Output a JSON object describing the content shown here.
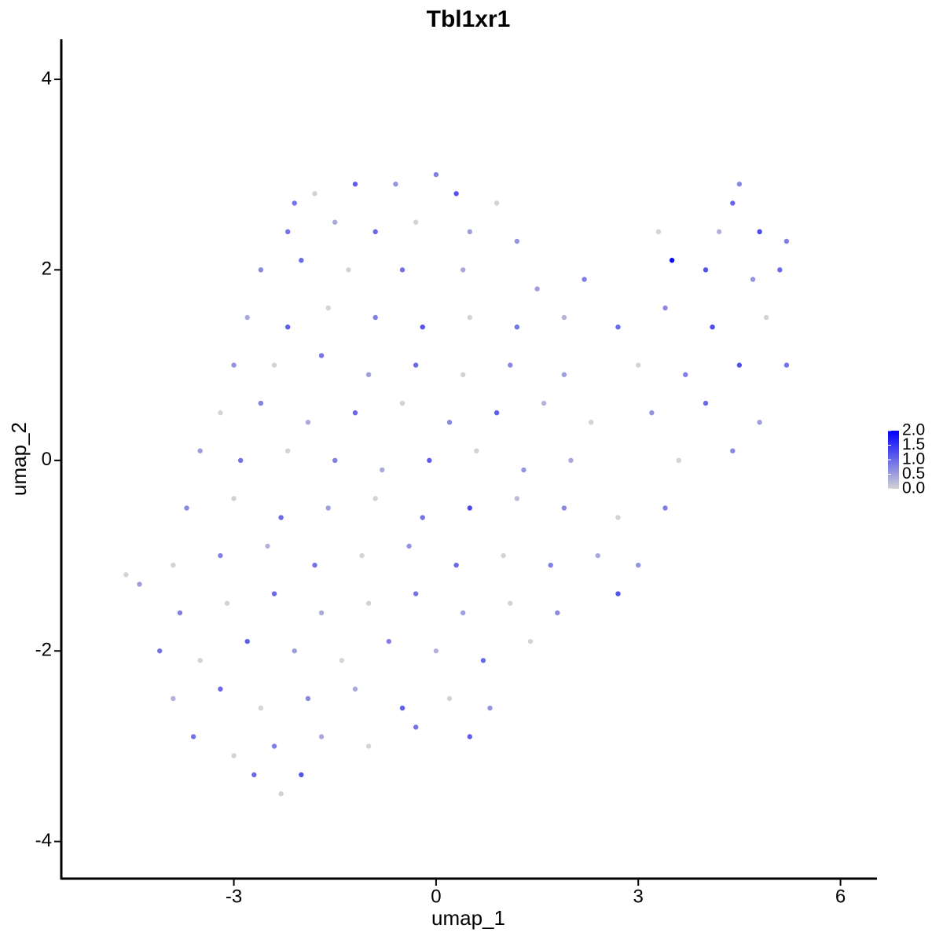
{
  "chart_data": {
    "type": "scatter",
    "title": "Tbl1xr1",
    "x_label": "umap_1",
    "y_label": "umap_2",
    "xlim": [
      -5.56,
      6.53
    ],
    "ylim": [
      -4.39,
      4.42
    ],
    "xticks": [
      -3,
      0,
      3,
      6
    ],
    "yticks": [
      -4,
      -2,
      0,
      2,
      4
    ],
    "colorbar": {
      "lim": [
        0,
        2
      ],
      "low": "#d3d3d3",
      "high": "#0000ff",
      "ticks": [
        {
          "value": 0,
          "label": "0.0"
        },
        {
          "value": 0.5,
          "label": "0.5"
        },
        {
          "value": 1,
          "label": "1.0"
        },
        {
          "value": 1.5,
          "label": "1.5"
        },
        {
          "value": 2,
          "label": "2.0"
        }
      ]
    },
    "x": [
      -1.8,
      -1.2,
      -0.6,
      0,
      0.3,
      0.9,
      -2.1,
      4.5,
      4.4,
      -2.2,
      -1.5,
      -0.9,
      -0.3,
      0.5,
      1.2,
      3.3,
      4.2,
      4.8,
      5.2,
      -2.6,
      -2.0,
      -1.3,
      -0.5,
      0.4,
      1.5,
      2.2,
      3.5,
      4.0,
      4.7,
      5.1,
      -2.8,
      -2.2,
      -1.6,
      -0.9,
      -0.2,
      0.5,
      1.2,
      1.9,
      2.7,
      3.4,
      4.1,
      4.9,
      -3.0,
      -2.4,
      -1.7,
      -1.0,
      -0.3,
      0.4,
      1.1,
      1.9,
      3.0,
      3.7,
      4.5,
      5.2,
      -3.2,
      -2.6,
      -1.9,
      -1.2,
      -0.5,
      0.2,
      0.9,
      1.6,
      2.3,
      3.2,
      4.0,
      4.8,
      -3.5,
      -2.9,
      -2.2,
      -1.5,
      -0.8,
      -0.1,
      0.6,
      1.3,
      2.0,
      3.6,
      4.4,
      -3.7,
      -3.0,
      -2.3,
      -1.6,
      -0.9,
      -0.2,
      0.5,
      1.2,
      1.9,
      2.7,
      3.4,
      -3.9,
      -3.2,
      -2.5,
      -1.8,
      -1.1,
      -0.4,
      0.3,
      1.0,
      1.7,
      2.4,
      3.0,
      -4.4,
      -3.8,
      -3.1,
      -2.4,
      -1.7,
      -1.0,
      -0.3,
      0.4,
      1.1,
      1.8,
      2.7,
      -4.1,
      -3.5,
      -2.8,
      -2.1,
      -1.4,
      -0.7,
      0,
      0.7,
      1.4,
      -3.9,
      -3.2,
      -2.6,
      -1.9,
      -1.2,
      -0.5,
      0.2,
      0.8,
      -3.6,
      -3.0,
      -2.4,
      -1.7,
      -1.0,
      -0.3,
      0.5,
      -2.7,
      -2.3,
      -2.0,
      -4.6
    ],
    "y": [
      2.8,
      2.9,
      2.9,
      3.0,
      2.8,
      2.7,
      2.7,
      2.9,
      2.7,
      2.4,
      2.5,
      2.4,
      2.5,
      2.4,
      2.3,
      2.4,
      2.4,
      2.4,
      2.3,
      2.0,
      2.1,
      2.0,
      2.0,
      2.0,
      1.8,
      1.9,
      2.1,
      2.0,
      1.9,
      2.0,
      1.5,
      1.4,
      1.6,
      1.5,
      1.4,
      1.5,
      1.4,
      1.5,
      1.4,
      1.6,
      1.4,
      1.5,
      1.0,
      1.0,
      1.1,
      0.9,
      1.0,
      0.9,
      1.0,
      0.9,
      1.0,
      0.9,
      1.0,
      1.0,
      0.5,
      0.6,
      0.4,
      0.5,
      0.6,
      0.4,
      0.5,
      0.6,
      0.4,
      0.5,
      0.6,
      0.4,
      0.1,
      0.0,
      0.1,
      0.0,
      -0.1,
      0.0,
      0.1,
      -0.1,
      0.0,
      0.0,
      0.1,
      -0.5,
      -0.4,
      -0.6,
      -0.5,
      -0.4,
      -0.6,
      -0.5,
      -0.4,
      -0.5,
      -0.6,
      -0.5,
      -1.1,
      -1.0,
      -0.9,
      -1.1,
      -1.0,
      -0.9,
      -1.1,
      -1.0,
      -1.1,
      -1.0,
      -1.1,
      -1.3,
      -1.6,
      -1.5,
      -1.4,
      -1.6,
      -1.5,
      -1.4,
      -1.6,
      -1.5,
      -1.6,
      -1.4,
      -2.0,
      -2.1,
      -1.9,
      -2.0,
      -2.1,
      -1.9,
      -2.0,
      -2.1,
      -1.9,
      -2.5,
      -2.4,
      -2.6,
      -2.5,
      -2.4,
      -2.6,
      -2.5,
      -2.6,
      -2.9,
      -3.1,
      -3.0,
      -2.9,
      -3.0,
      -2.8,
      -2.9,
      -3.3,
      -3.5,
      -3.3,
      -1.2
    ],
    "values": [
      0,
      1.1,
      0.6,
      0.8,
      1.2,
      0,
      0.9,
      0.7,
      1.0,
      0.9,
      0.4,
      1.0,
      0,
      0.5,
      0.6,
      0,
      0.3,
      1.3,
      0.8,
      0.7,
      1.0,
      0,
      0.9,
      0.4,
      0.5,
      0.8,
      1.9,
      1.2,
      0.6,
      1.0,
      0.4,
      1.1,
      0,
      0.8,
      1.2,
      0,
      0.9,
      0.3,
      1.0,
      0.7,
      1.3,
      0,
      0.6,
      0,
      0.9,
      0.5,
      1.0,
      0,
      0.7,
      0.5,
      0,
      0.8,
      1.2,
      0.9,
      0,
      0.8,
      0.4,
      1.0,
      0,
      0.7,
      1.1,
      0.3,
      0,
      0.6,
      1.0,
      0.5,
      0.5,
      0.9,
      0,
      0.8,
      0.4,
      1.1,
      0,
      0.6,
      0.4,
      0,
      0.7,
      0.7,
      0,
      1.0,
      0.5,
      0,
      0.9,
      1.3,
      0.2,
      0.7,
      0,
      0.8,
      0,
      0.8,
      0.3,
      0.9,
      0,
      0.6,
      1.0,
      0,
      0.8,
      0.4,
      0.6,
      0.5,
      0.8,
      0,
      1.0,
      0.4,
      0,
      0.9,
      0.5,
      0,
      0.7,
      1.2,
      0.9,
      0,
      1.1,
      0.5,
      0,
      0.8,
      0.3,
      1.0,
      0,
      0.3,
      1.0,
      0,
      0.7,
      0.4,
      1.1,
      0,
      0.6,
      0.9,
      0,
      0.8,
      0.4,
      0,
      0.9,
      1.1,
      1.0,
      0,
      1.2,
      0
    ]
  }
}
